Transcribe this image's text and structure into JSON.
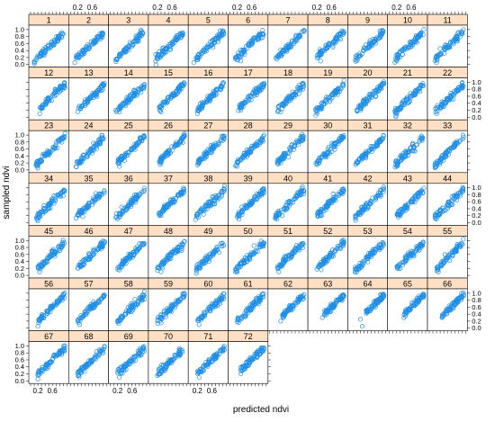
{
  "chart_data": {
    "type": "scatter",
    "layout": "lattice",
    "xlabel": "predicted ndvi",
    "ylabel": "sampled ndvi",
    "x_tick_labels": [
      "0.2",
      "0.6"
    ],
    "x_ticks": [
      0.2,
      0.6
    ],
    "y_tick_labels": [
      "0.0",
      "0.2",
      "0.4",
      "0.6",
      "0.8",
      "1.0"
    ],
    "y_ticks": [
      0.0,
      0.2,
      0.4,
      0.6,
      0.8,
      1.0
    ],
    "xlim": [
      0.0,
      1.0
    ],
    "ylim": [
      -0.05,
      1.1
    ],
    "columns": 11,
    "rows": 7,
    "point_color": "#1f8fe6",
    "strip_color": "#ffe0c4",
    "panels": [
      {
        "label": "1",
        "xmin": 0.1,
        "xmax": 0.9,
        "noise": 0.05,
        "outliers": [
          [
            0.1,
            0.05
          ],
          [
            0.15,
            0.12
          ]
        ]
      },
      {
        "label": "2",
        "xmin": 0.15,
        "xmax": 0.9,
        "noise": 0.045,
        "outliers": [
          [
            0.12,
            0.05
          ]
        ]
      },
      {
        "label": "3",
        "xmin": 0.15,
        "xmax": 0.9,
        "noise": 0.05,
        "outliers": []
      },
      {
        "label": "4",
        "xmin": 0.15,
        "xmax": 0.95,
        "noise": 0.05,
        "outliers": [
          [
            0.15,
            0.1
          ]
        ]
      },
      {
        "label": "5",
        "xmin": 0.15,
        "xmax": 0.95,
        "noise": 0.05,
        "outliers": [
          [
            0.1,
            0.05
          ]
        ]
      },
      {
        "label": "6",
        "xmin": 0.15,
        "xmax": 0.95,
        "noise": 0.05,
        "outliers": [
          [
            0.3,
            0.1
          ]
        ]
      },
      {
        "label": "7",
        "xmin": 0.15,
        "xmax": 0.95,
        "noise": 0.05,
        "outliers": [
          [
            0.2,
            0.15
          ]
        ]
      },
      {
        "label": "8",
        "xmin": 0.2,
        "xmax": 0.95,
        "noise": 0.05,
        "outliers": [
          [
            0.3,
            0.1
          ]
        ]
      },
      {
        "label": "9",
        "xmin": 0.15,
        "xmax": 0.95,
        "noise": 0.05,
        "outliers": [
          [
            0.3,
            0.25
          ]
        ]
      },
      {
        "label": "10",
        "xmin": 0.15,
        "xmax": 0.95,
        "noise": 0.05,
        "outliers": [
          [
            0.2,
            0.1
          ]
        ]
      },
      {
        "label": "11",
        "xmin": 0.15,
        "xmax": 0.95,
        "noise": 0.05,
        "outliers": [
          [
            0.2,
            0.05
          ]
        ]
      },
      {
        "label": "12",
        "xmin": 0.25,
        "xmax": 0.95,
        "noise": 0.05,
        "outliers": [
          [
            0.25,
            0.1
          ]
        ]
      },
      {
        "label": "13",
        "xmin": 0.2,
        "xmax": 0.95,
        "noise": 0.05,
        "outliers": []
      },
      {
        "label": "14",
        "xmin": 0.15,
        "xmax": 0.95,
        "noise": 0.05,
        "outliers": [
          [
            0.15,
            0.2
          ],
          [
            0.25,
            0.15
          ]
        ]
      },
      {
        "label": "15",
        "xmin": 0.25,
        "xmax": 0.95,
        "noise": 0.05,
        "outliers": [
          [
            0.3,
            0.15
          ]
        ]
      },
      {
        "label": "16",
        "xmin": 0.2,
        "xmax": 0.95,
        "noise": 0.05,
        "outliers": [
          [
            0.2,
            0.1
          ]
        ]
      },
      {
        "label": "17",
        "xmin": 0.2,
        "xmax": 0.95,
        "noise": 0.05,
        "outliers": []
      },
      {
        "label": "18",
        "xmin": 0.2,
        "xmax": 0.95,
        "noise": 0.05,
        "outliers": [
          [
            0.3,
            0.15
          ]
        ]
      },
      {
        "label": "19",
        "xmin": 0.15,
        "xmax": 0.95,
        "noise": 0.05,
        "outliers": []
      },
      {
        "label": "20",
        "xmin": 0.2,
        "xmax": 0.95,
        "noise": 0.05,
        "outliers": [
          [
            0.3,
            0.2
          ]
        ]
      },
      {
        "label": "21",
        "xmin": 0.15,
        "xmax": 0.95,
        "noise": 0.05,
        "outliers": [
          [
            0.2,
            0.1
          ]
        ]
      },
      {
        "label": "22",
        "xmin": 0.15,
        "xmax": 0.95,
        "noise": 0.05,
        "outliers": [
          [
            0.2,
            0.1
          ]
        ]
      },
      {
        "label": "23",
        "xmin": 0.15,
        "xmax": 0.95,
        "noise": 0.05,
        "outliers": [
          [
            0.2,
            0.05
          ]
        ]
      },
      {
        "label": "24",
        "xmin": 0.15,
        "xmax": 0.95,
        "noise": 0.05,
        "outliers": []
      },
      {
        "label": "25",
        "xmin": 0.2,
        "xmax": 0.95,
        "noise": 0.05,
        "outliers": [
          [
            0.25,
            0.1
          ]
        ]
      },
      {
        "label": "26",
        "xmin": 0.25,
        "xmax": 0.95,
        "noise": 0.05,
        "outliers": [
          [
            0.3,
            0.2
          ]
        ]
      },
      {
        "label": "27",
        "xmin": 0.2,
        "xmax": 0.95,
        "noise": 0.05,
        "outliers": []
      },
      {
        "label": "28",
        "xmin": 0.15,
        "xmax": 0.95,
        "noise": 0.05,
        "outliers": [
          [
            0.2,
            0.1
          ]
        ]
      },
      {
        "label": "29",
        "xmin": 0.2,
        "xmax": 0.95,
        "noise": 0.05,
        "outliers": [
          [
            0.3,
            0.2
          ]
        ]
      },
      {
        "label": "30",
        "xmin": 0.15,
        "xmax": 0.95,
        "noise": 0.05,
        "outliers": [
          [
            0.2,
            0.15
          ]
        ]
      },
      {
        "label": "31",
        "xmin": 0.15,
        "xmax": 0.95,
        "noise": 0.05,
        "outliers": []
      },
      {
        "label": "32",
        "xmin": 0.15,
        "xmax": 0.95,
        "noise": 0.05,
        "outliers": [
          [
            0.2,
            0.1
          ]
        ]
      },
      {
        "label": "33",
        "xmin": 0.15,
        "xmax": 0.95,
        "noise": 0.05,
        "outliers": [
          [
            0.2,
            0.1
          ]
        ]
      },
      {
        "label": "34",
        "xmin": 0.15,
        "xmax": 0.95,
        "noise": 0.05,
        "outliers": [
          [
            0.2,
            0.05
          ]
        ]
      },
      {
        "label": "35",
        "xmin": 0.15,
        "xmax": 0.95,
        "noise": 0.05,
        "outliers": []
      },
      {
        "label": "36",
        "xmin": 0.15,
        "xmax": 0.95,
        "noise": 0.05,
        "outliers": [
          [
            0.2,
            0.1
          ]
        ]
      },
      {
        "label": "37",
        "xmin": 0.2,
        "xmax": 0.95,
        "noise": 0.05,
        "outliers": [
          [
            0.3,
            0.2
          ]
        ]
      },
      {
        "label": "38",
        "xmin": 0.15,
        "xmax": 0.95,
        "noise": 0.05,
        "outliers": []
      },
      {
        "label": "39",
        "xmin": 0.2,
        "xmax": 0.95,
        "noise": 0.05,
        "outliers": [
          [
            0.25,
            0.1
          ]
        ]
      },
      {
        "label": "40",
        "xmin": 0.15,
        "xmax": 0.95,
        "noise": 0.05,
        "outliers": [
          [
            0.2,
            0.1
          ]
        ]
      },
      {
        "label": "41",
        "xmin": 0.2,
        "xmax": 0.95,
        "noise": 0.05,
        "outliers": [
          [
            0.3,
            0.2
          ]
        ]
      },
      {
        "label": "42",
        "xmin": 0.15,
        "xmax": 0.95,
        "noise": 0.05,
        "outliers": []
      },
      {
        "label": "43",
        "xmin": 0.2,
        "xmax": 0.95,
        "noise": 0.05,
        "outliers": [
          [
            0.3,
            0.2
          ]
        ]
      },
      {
        "label": "44",
        "xmin": 0.15,
        "xmax": 0.95,
        "noise": 0.05,
        "outliers": [
          [
            0.2,
            0.1
          ]
        ]
      },
      {
        "label": "45",
        "xmin": 0.2,
        "xmax": 0.95,
        "noise": 0.05,
        "outliers": [
          [
            0.25,
            0.1
          ]
        ]
      },
      {
        "label": "46",
        "xmin": 0.2,
        "xmax": 0.95,
        "noise": 0.05,
        "outliers": []
      },
      {
        "label": "47",
        "xmin": 0.2,
        "xmax": 0.95,
        "noise": 0.05,
        "outliers": [
          [
            0.25,
            0.15
          ]
        ]
      },
      {
        "label": "48",
        "xmin": 0.2,
        "xmax": 0.95,
        "noise": 0.05,
        "outliers": [
          [
            0.3,
            0.1
          ]
        ]
      },
      {
        "label": "49",
        "xmin": 0.15,
        "xmax": 0.95,
        "noise": 0.05,
        "outliers": []
      },
      {
        "label": "50",
        "xmin": 0.15,
        "xmax": 0.95,
        "noise": 0.05,
        "outliers": [
          [
            0.2,
            0.1
          ]
        ]
      },
      {
        "label": "51",
        "xmin": 0.2,
        "xmax": 0.95,
        "noise": 0.05,
        "outliers": [
          [
            0.25,
            0.1
          ]
        ]
      },
      {
        "label": "52",
        "xmin": 0.2,
        "xmax": 0.95,
        "noise": 0.05,
        "outliers": []
      },
      {
        "label": "53",
        "xmin": 0.15,
        "xmax": 0.95,
        "noise": 0.05,
        "outliers": [
          [
            0.2,
            0.1
          ]
        ]
      },
      {
        "label": "54",
        "xmin": 0.2,
        "xmax": 0.95,
        "noise": 0.05,
        "outliers": [
          [
            0.3,
            0.2
          ]
        ]
      },
      {
        "label": "55",
        "xmin": 0.2,
        "xmax": 0.95,
        "noise": 0.05,
        "outliers": [
          [
            0.25,
            0.1
          ]
        ]
      },
      {
        "label": "56",
        "xmin": 0.2,
        "xmax": 0.95,
        "noise": 0.05,
        "outliers": [
          [
            0.2,
            0.05
          ]
        ]
      },
      {
        "label": "57",
        "xmin": 0.2,
        "xmax": 0.95,
        "noise": 0.05,
        "outliers": [
          [
            0.25,
            0.1
          ]
        ]
      },
      {
        "label": "58",
        "xmin": 0.2,
        "xmax": 0.95,
        "noise": 0.05,
        "outliers": []
      },
      {
        "label": "59",
        "xmin": 0.2,
        "xmax": 0.95,
        "noise": 0.05,
        "outliers": [
          [
            0.3,
            0.15
          ]
        ]
      },
      {
        "label": "60",
        "xmin": 0.2,
        "xmax": 0.95,
        "noise": 0.05,
        "outliers": [
          [
            0.25,
            0.1
          ]
        ]
      },
      {
        "label": "61",
        "xmin": 0.2,
        "xmax": 0.95,
        "noise": 0.05,
        "outliers": []
      },
      {
        "label": "62",
        "xmin": 0.35,
        "xmax": 0.95,
        "noise": 0.04,
        "outliers": [
          [
            0.3,
            0.2
          ]
        ]
      },
      {
        "label": "63",
        "xmin": 0.4,
        "xmax": 0.95,
        "noise": 0.04,
        "outliers": [
          [
            0.35,
            0.3
          ]
        ]
      },
      {
        "label": "64",
        "xmin": 0.45,
        "xmax": 0.95,
        "noise": 0.04,
        "outliers": [
          [
            0.3,
            0.25
          ],
          [
            0.35,
            0.05
          ]
        ]
      },
      {
        "label": "65",
        "xmin": 0.4,
        "xmax": 0.95,
        "noise": 0.04,
        "outliers": [
          [
            0.4,
            0.3
          ]
        ]
      },
      {
        "label": "66",
        "xmin": 0.35,
        "xmax": 0.95,
        "noise": 0.04,
        "outliers": [
          [
            0.35,
            0.3
          ]
        ]
      },
      {
        "label": "67",
        "xmin": 0.2,
        "xmax": 0.95,
        "noise": 0.05,
        "outliers": [
          [
            0.2,
            0.05
          ]
        ]
      },
      {
        "label": "68",
        "xmin": 0.2,
        "xmax": 0.95,
        "noise": 0.05,
        "outliers": []
      },
      {
        "label": "69",
        "xmin": 0.2,
        "xmax": 0.95,
        "noise": 0.05,
        "outliers": [
          [
            0.25,
            0.1
          ]
        ]
      },
      {
        "label": "70",
        "xmin": 0.2,
        "xmax": 0.95,
        "noise": 0.05,
        "outliers": [
          [
            0.2,
            0.15
          ]
        ]
      },
      {
        "label": "71",
        "xmin": 0.2,
        "xmax": 0.95,
        "noise": 0.05,
        "outliers": [
          [
            0.25,
            0.1
          ]
        ]
      },
      {
        "label": "72",
        "xmin": 0.25,
        "xmax": 0.95,
        "noise": 0.05,
        "outliers": [
          [
            0.3,
            0.2
          ]
        ]
      }
    ]
  }
}
